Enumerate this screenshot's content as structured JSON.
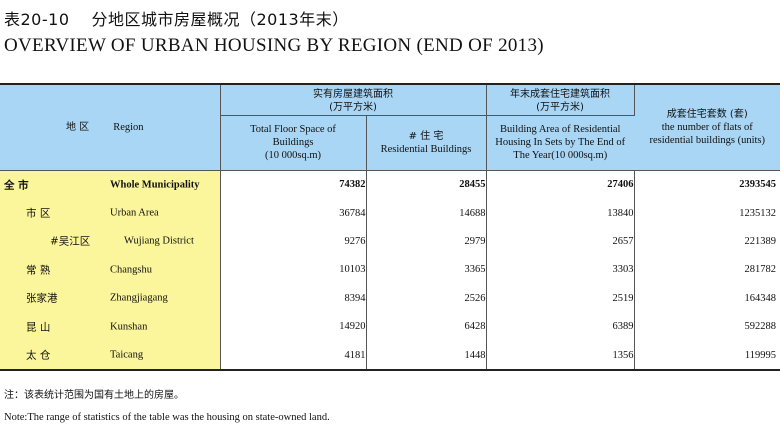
{
  "title": {
    "cn_number": "表20-10",
    "cn_text": "分地区城市房屋概况（2013年末）",
    "en": "OVERVIEW  OF  URBAN  HOUSING  BY  REGION (END OF 2013)"
  },
  "table": {
    "headers": {
      "region_cn": "地 区",
      "region_en": "Region",
      "col1_cn": "实有房屋建筑面积",
      "col1_cn_unit": "(万平方米)",
      "col1_en": "Total Floor Space of Buildings",
      "col1_en_unit": "(10 000sq.m)",
      "col2_cn": "# 住 宅",
      "col2_en": "Residential Buildings",
      "col3_cn": "年末成套住宅建筑面积",
      "col3_cn_unit": "(万平方米)",
      "col3_en": "Building Area of  Residential Housing In Sets by The End of The Year(10 000sq.m)",
      "col4_cn": "成套住宅套数 (套)",
      "col4_en": "the number of flats of residential buildings  (units)"
    },
    "rows": [
      {
        "cn": "全      市",
        "en": "Whole Municipality",
        "total_floor": "74382",
        "residential": "28455",
        "housing_sets": "27406",
        "flats": "2393545"
      },
      {
        "cn": "市  区",
        "en": "Urban Area",
        "total_floor": "36784",
        "residential": "14688",
        "housing_sets": "13840",
        "flats": "1235132"
      },
      {
        "cn": "#吴江区",
        "en": "Wujiang District",
        "total_floor": "9276",
        "residential": "2979",
        "housing_sets": "2657",
        "flats": "221389"
      },
      {
        "cn": "常  熟",
        "en": "Changshu",
        "total_floor": "10103",
        "residential": "3365",
        "housing_sets": "3303",
        "flats": "281782"
      },
      {
        "cn": "张家港",
        "en": "Zhangjiagang",
        "total_floor": "8394",
        "residential": "2526",
        "housing_sets": "2519",
        "flats": "164348"
      },
      {
        "cn": "昆  山",
        "en": "Kunshan",
        "total_floor": "14920",
        "residential": "6428",
        "housing_sets": "6389",
        "flats": "592288"
      },
      {
        "cn": "太  仓",
        "en": "Taicang",
        "total_floor": "4181",
        "residential": "1448",
        "housing_sets": "1356",
        "flats": "119995"
      }
    ]
  },
  "notes": {
    "cn": "注：该表统计范围为国有土地上的房屋。",
    "en": "Note:The range of statistics of the table was the housing on state-owned land."
  }
}
